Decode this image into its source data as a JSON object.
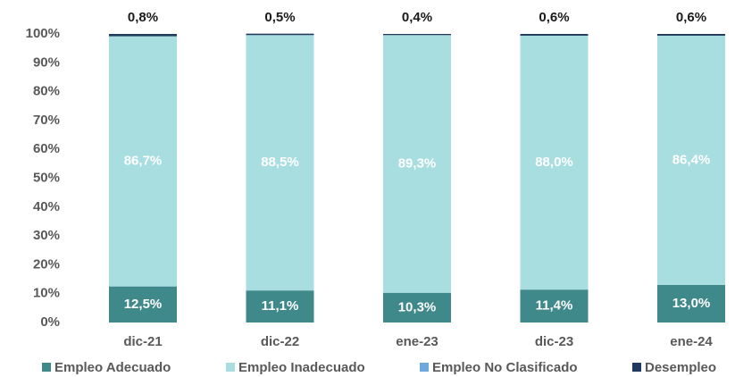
{
  "chart_data": {
    "type": "stacked-bar",
    "categories": [
      "dic-21",
      "dic-22",
      "ene-23",
      "dic-23",
      "ene-24"
    ],
    "series": [
      {
        "name": "Empleo Adecuado",
        "color": "#3f898b",
        "values": [
          12.5,
          11.1,
          10.3,
          11.4,
          13.0
        ],
        "value_labels": [
          "12,5%",
          "11,1%",
          "10,3%",
          "11,4%",
          "13,0%"
        ]
      },
      {
        "name": "Empleo Inadecuado",
        "color": "#a9dee1",
        "values": [
          86.7,
          88.5,
          89.3,
          88.0,
          86.4
        ],
        "value_labels": [
          "86,7%",
          "88,5%",
          "89,3%",
          "88,0%",
          "86,4%"
        ]
      },
      {
        "name": "Empleo No Clasificado",
        "color": "#6fa8dc",
        "values": [
          0,
          0,
          0,
          0,
          0
        ]
      },
      {
        "name": "Desempleo",
        "color": "#1f3a5c",
        "values": [
          0.8,
          0.5,
          0.4,
          0.6,
          0.6
        ],
        "value_labels": [
          "0,8%",
          "0,5%",
          "0,4%",
          "0,6%",
          "0,6%"
        ]
      }
    ],
    "ylim": [
      0,
      100
    ],
    "yticks": [
      {
        "value": 0,
        "label": "0%"
      },
      {
        "value": 10,
        "label": "10%"
      },
      {
        "value": 20,
        "label": "20%"
      },
      {
        "value": 30,
        "label": "30%"
      },
      {
        "value": 40,
        "label": "40%"
      },
      {
        "value": 50,
        "label": "50%"
      },
      {
        "value": 60,
        "label": "60%"
      },
      {
        "value": 70,
        "label": "70%"
      },
      {
        "value": 80,
        "label": "80%"
      },
      {
        "value": 90,
        "label": "90%"
      },
      {
        "value": 100,
        "label": "100%"
      }
    ],
    "legend": "bottom"
  }
}
